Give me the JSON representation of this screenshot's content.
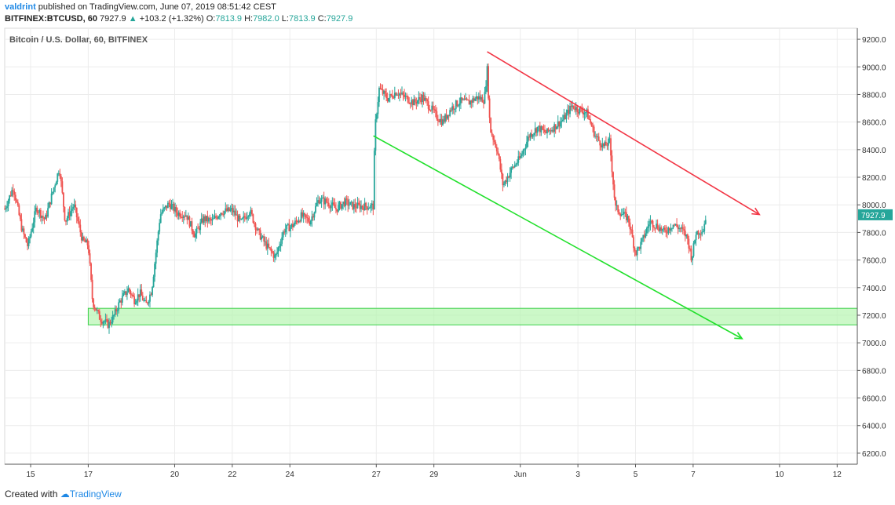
{
  "header": {
    "user": "valdrint",
    "published": " published on TradingView.com, June 07, 2019 08:51:42 CEST",
    "symbol": "BITFINEX:BTCUSD, 60",
    "last": "7927.9",
    "change_arrow": "▲",
    "change": "+103.2 (+1.32%)",
    "o_label": "O:",
    "o": "7813.9",
    "h_label": "H:",
    "h": "7982.0",
    "l_label": "L:",
    "l": "7813.9",
    "c_label": "C:",
    "c": "7927.9"
  },
  "chart_title": "Bitcoin / U.S. Dollar, 60, BITFINEX",
  "footer": {
    "created": "Created with",
    "brand": "TradingView"
  },
  "colors": {
    "up": "#26a69a",
    "down": "#ef5350",
    "resistance": "#f23645",
    "support": "#22e02c",
    "zone_fill": "#b6f5b0",
    "zone_stroke": "#3cd04a",
    "price_label": "#26a69a"
  },
  "chart_data": {
    "type": "candlestick",
    "title": "Bitcoin / U.S. Dollar, 60, BITFINEX",
    "y_ticks": [
      6200,
      6400,
      6600,
      6800,
      7000,
      7200,
      7400,
      7600,
      7800,
      8000,
      8200,
      8400,
      8600,
      8800,
      9000,
      9200
    ],
    "y_tick_labels": [
      "6200.0",
      "6400.0",
      "6600.0",
      "6800.0",
      "7000.0",
      "7200.0",
      "7400.0",
      "7600.0",
      "7800.0",
      "8000.0",
      "8200.0",
      "8400.0",
      "8600.0",
      "8800.0",
      "9000.0",
      "9200.0"
    ],
    "ylim": [
      6120,
      9280
    ],
    "x_ticks": [
      {
        "day": 15,
        "label": "15"
      },
      {
        "day": 17,
        "label": "17"
      },
      {
        "day": 20,
        "label": "20"
      },
      {
        "day": 22,
        "label": "22"
      },
      {
        "day": 24,
        "label": "24"
      },
      {
        "day": 27,
        "label": "27"
      },
      {
        "day": 29,
        "label": "29"
      },
      {
        "day": 32,
        "label": "Jun"
      },
      {
        "day": 34,
        "label": "3"
      },
      {
        "day": 36,
        "label": "5"
      },
      {
        "day": 38,
        "label": "7"
      },
      {
        "day": 41,
        "label": "10"
      },
      {
        "day": 43,
        "label": "12"
      }
    ],
    "xlim": [
      14.1,
      43.7
    ],
    "price_path": [
      [
        14.1,
        7970
      ],
      [
        14.4,
        8130
      ],
      [
        14.7,
        7820
      ],
      [
        14.9,
        7700
      ],
      [
        15.2,
        7980
      ],
      [
        15.5,
        7890
      ],
      [
        15.8,
        8120
      ],
      [
        16.0,
        8270
      ],
      [
        16.2,
        7880
      ],
      [
        16.5,
        8000
      ],
      [
        16.8,
        7740
      ],
      [
        17.0,
        7710
      ],
      [
        17.15,
        7300
      ],
      [
        17.4,
        7180
      ],
      [
        17.7,
        7130
      ],
      [
        17.9,
        7200
      ],
      [
        18.1,
        7300
      ],
      [
        18.4,
        7390
      ],
      [
        18.6,
        7310
      ],
      [
        18.8,
        7360
      ],
      [
        19.0,
        7270
      ],
      [
        19.2,
        7380
      ],
      [
        19.5,
        7930
      ],
      [
        19.8,
        8010
      ],
      [
        20.1,
        7940
      ],
      [
        20.4,
        7930
      ],
      [
        20.7,
        7780
      ],
      [
        21.0,
        7900
      ],
      [
        21.3,
        7880
      ],
      [
        21.6,
        7950
      ],
      [
        22.0,
        7960
      ],
      [
        22.3,
        7870
      ],
      [
        22.6,
        7960
      ],
      [
        22.9,
        7800
      ],
      [
        23.2,
        7700
      ],
      [
        23.5,
        7620
      ],
      [
        23.8,
        7820
      ],
      [
        24.1,
        7850
      ],
      [
        24.4,
        7920
      ],
      [
        24.7,
        7880
      ],
      [
        25.0,
        8040
      ],
      [
        25.3,
        8020
      ],
      [
        25.6,
        7970
      ],
      [
        25.9,
        8020
      ],
      [
        26.2,
        7990
      ],
      [
        26.5,
        7990
      ],
      [
        26.9,
        7990
      ],
      [
        26.95,
        8550
      ],
      [
        27.1,
        8840
      ],
      [
        27.4,
        8770
      ],
      [
        27.7,
        8820
      ],
      [
        28.0,
        8780
      ],
      [
        28.3,
        8740
      ],
      [
        28.6,
        8780
      ],
      [
        28.9,
        8700
      ],
      [
        29.1,
        8640
      ],
      [
        29.3,
        8600
      ],
      [
        29.6,
        8700
      ],
      [
        29.9,
        8750
      ],
      [
        30.2,
        8740
      ],
      [
        30.5,
        8780
      ],
      [
        30.75,
        8760
      ],
      [
        30.85,
        8980
      ],
      [
        30.95,
        8550
      ],
      [
        31.2,
        8400
      ],
      [
        31.4,
        8140
      ],
      [
        31.7,
        8260
      ],
      [
        32.0,
        8340
      ],
      [
        32.3,
        8500
      ],
      [
        32.6,
        8560
      ],
      [
        32.9,
        8520
      ],
      [
        33.2,
        8570
      ],
      [
        33.5,
        8620
      ],
      [
        33.8,
        8720
      ],
      [
        34.0,
        8690
      ],
      [
        34.3,
        8670
      ],
      [
        34.6,
        8500
      ],
      [
        34.9,
        8420
      ],
      [
        35.1,
        8460
      ],
      [
        35.3,
        7980
      ],
      [
        35.5,
        7940
      ],
      [
        35.75,
        7900
      ],
      [
        36.0,
        7650
      ],
      [
        36.2,
        7720
      ],
      [
        36.5,
        7880
      ],
      [
        36.8,
        7840
      ],
      [
        37.0,
        7800
      ],
      [
        37.3,
        7860
      ],
      [
        37.6,
        7820
      ],
      [
        37.8,
        7760
      ],
      [
        37.95,
        7610
      ],
      [
        38.1,
        7800
      ],
      [
        38.35,
        7820
      ],
      [
        38.45,
        7927.9
      ]
    ],
    "annotations": [
      {
        "type": "trend_line",
        "name": "resistance",
        "color": "red",
        "from": {
          "day": 30.85,
          "price": 9110
        },
        "to": {
          "day": 40.3,
          "price": 7930
        }
      },
      {
        "type": "trend_line",
        "name": "support",
        "color": "green",
        "from": {
          "day": 26.9,
          "price": 8500
        },
        "to": {
          "day": 39.7,
          "price": 7030
        }
      },
      {
        "type": "zone",
        "name": "support-zone",
        "color": "green",
        "from_day": 17.0,
        "to_day": 43.7,
        "price_low": 7130,
        "price_high": 7250
      }
    ],
    "last_price": 7927.9,
    "last_price_label": "7927.9"
  }
}
